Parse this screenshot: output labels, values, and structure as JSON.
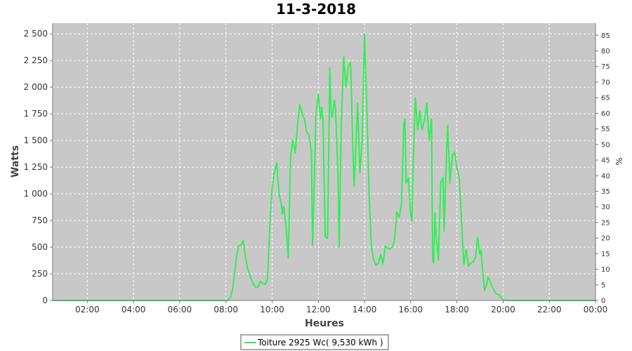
{
  "chart_data": {
    "type": "line",
    "title": "11-3-2018",
    "xlabel": "Heures",
    "ylabel": "Watts",
    "y2label": "%",
    "xlim": [
      0.5,
      24.0
    ],
    "ylim": [
      0,
      2600
    ],
    "y2lim": [
      0,
      88.89
    ],
    "x_ticks": [
      {
        "v": 2,
        "label": "02:00"
      },
      {
        "v": 4,
        "label": "04:00"
      },
      {
        "v": 6,
        "label": "06:00"
      },
      {
        "v": 8,
        "label": "08:00"
      },
      {
        "v": 10,
        "label": "10:00"
      },
      {
        "v": 12,
        "label": "12:00"
      },
      {
        "v": 14,
        "label": "14:00"
      },
      {
        "v": 16,
        "label": "16:00"
      },
      {
        "v": 18,
        "label": "18:00"
      },
      {
        "v": 20,
        "label": "20:00"
      },
      {
        "v": 22,
        "label": "22:00"
      },
      {
        "v": 24,
        "label": "00:00"
      }
    ],
    "y_ticks": [
      {
        "v": 0,
        "label": "0"
      },
      {
        "v": 250,
        "label": "250"
      },
      {
        "v": 500,
        "label": "500"
      },
      {
        "v": 750,
        "label": "750"
      },
      {
        "v": 1000,
        "label": "1 000"
      },
      {
        "v": 1250,
        "label": "1 250"
      },
      {
        "v": 1500,
        "label": "1 500"
      },
      {
        "v": 1750,
        "label": "1 750"
      },
      {
        "v": 2000,
        "label": "2 000"
      },
      {
        "v": 2250,
        "label": "2 250"
      },
      {
        "v": 2500,
        "label": "2 500"
      }
    ],
    "y2_ticks": [
      {
        "v": 0,
        "label": "0"
      },
      {
        "v": 5,
        "label": "5"
      },
      {
        "v": 10,
        "label": "10"
      },
      {
        "v": 15,
        "label": "15"
      },
      {
        "v": 20,
        "label": "20"
      },
      {
        "v": 25,
        "label": "25"
      },
      {
        "v": 30,
        "label": "30"
      },
      {
        "v": 35,
        "label": "35"
      },
      {
        "v": 40,
        "label": "40"
      },
      {
        "v": 45,
        "label": "45"
      },
      {
        "v": 50,
        "label": "50"
      },
      {
        "v": 55,
        "label": "55"
      },
      {
        "v": 60,
        "label": "60"
      },
      {
        "v": 65,
        "label": "65"
      },
      {
        "v": 70,
        "label": "70"
      },
      {
        "v": 75,
        "label": "75"
      },
      {
        "v": 80,
        "label": "80"
      },
      {
        "v": 85,
        "label": "85"
      }
    ],
    "grid": true,
    "plot_background": "#c8c8c8",
    "legend_position": "bottom-center",
    "series": [
      {
        "name": "Toiture 2925 Wc( 9,530 kWh )",
        "color": "#33ee55",
        "points": [
          [
            0.5,
            0
          ],
          [
            8.1,
            0
          ],
          [
            8.2,
            30
          ],
          [
            8.3,
            120
          ],
          [
            8.45,
            400
          ],
          [
            8.55,
            510
          ],
          [
            8.65,
            520
          ],
          [
            8.75,
            560
          ],
          [
            8.85,
            400
          ],
          [
            8.95,
            290
          ],
          [
            9.05,
            230
          ],
          [
            9.2,
            150
          ],
          [
            9.3,
            120
          ],
          [
            9.4,
            130
          ],
          [
            9.5,
            180
          ],
          [
            9.6,
            160
          ],
          [
            9.7,
            150
          ],
          [
            9.8,
            200
          ],
          [
            9.9,
            700
          ],
          [
            10.0,
            1050
          ],
          [
            10.1,
            1200
          ],
          [
            10.2,
            1290
          ],
          [
            10.3,
            1000
          ],
          [
            10.4,
            900
          ],
          [
            10.45,
            810
          ],
          [
            10.5,
            880
          ],
          [
            10.6,
            700
          ],
          [
            10.7,
            400
          ],
          [
            10.8,
            1350
          ],
          [
            10.9,
            1500
          ],
          [
            11.0,
            1380
          ],
          [
            11.1,
            1650
          ],
          [
            11.2,
            1840
          ],
          [
            11.3,
            1750
          ],
          [
            11.4,
            1700
          ],
          [
            11.5,
            1580
          ],
          [
            11.6,
            1550
          ],
          [
            11.7,
            1400
          ],
          [
            11.75,
            520
          ],
          [
            11.8,
            900
          ],
          [
            11.9,
            1750
          ],
          [
            12.0,
            1930
          ],
          [
            12.1,
            1700
          ],
          [
            12.15,
            1810
          ],
          [
            12.2,
            1700
          ],
          [
            12.3,
            600
          ],
          [
            12.4,
            580
          ],
          [
            12.5,
            2180
          ],
          [
            12.55,
            1780
          ],
          [
            12.6,
            1720
          ],
          [
            12.7,
            1880
          ],
          [
            12.75,
            1780
          ],
          [
            12.85,
            1200
          ],
          [
            12.9,
            500
          ],
          [
            13.0,
            1700
          ],
          [
            13.1,
            2290
          ],
          [
            13.2,
            2000
          ],
          [
            13.3,
            2200
          ],
          [
            13.4,
            2230
          ],
          [
            13.5,
            1400
          ],
          [
            13.55,
            1070
          ],
          [
            13.6,
            1300
          ],
          [
            13.7,
            1850
          ],
          [
            13.8,
            1200
          ],
          [
            13.9,
            1500
          ],
          [
            14.0,
            2500
          ],
          [
            14.1,
            1800
          ],
          [
            14.2,
            1000
          ],
          [
            14.3,
            500
          ],
          [
            14.4,
            380
          ],
          [
            14.5,
            330
          ],
          [
            14.6,
            350
          ],
          [
            14.7,
            430
          ],
          [
            14.8,
            340
          ],
          [
            14.9,
            510
          ],
          [
            15.0,
            490
          ],
          [
            15.1,
            480
          ],
          [
            15.2,
            500
          ],
          [
            15.3,
            560
          ],
          [
            15.4,
            830
          ],
          [
            15.5,
            780
          ],
          [
            15.6,
            900
          ],
          [
            15.7,
            1650
          ],
          [
            15.75,
            1700
          ],
          [
            15.8,
            1100
          ],
          [
            15.9,
            1150
          ],
          [
            16.0,
            800
          ],
          [
            16.05,
            740
          ],
          [
            16.1,
            1200
          ],
          [
            16.2,
            1900
          ],
          [
            16.3,
            1600
          ],
          [
            16.4,
            1780
          ],
          [
            16.45,
            1650
          ],
          [
            16.5,
            1600
          ],
          [
            16.6,
            1700
          ],
          [
            16.7,
            1850
          ],
          [
            16.8,
            1500
          ],
          [
            16.9,
            1700
          ],
          [
            16.95,
            380
          ],
          [
            17.0,
            350
          ],
          [
            17.05,
            820
          ],
          [
            17.1,
            620
          ],
          [
            17.2,
            380
          ],
          [
            17.3,
            1100
          ],
          [
            17.4,
            1150
          ],
          [
            17.45,
            650
          ],
          [
            17.5,
            1050
          ],
          [
            17.6,
            1640
          ],
          [
            17.7,
            1100
          ],
          [
            17.8,
            1360
          ],
          [
            17.9,
            1390
          ],
          [
            18.0,
            1250
          ],
          [
            18.1,
            1150
          ],
          [
            18.2,
            750
          ],
          [
            18.3,
            340
          ],
          [
            18.4,
            480
          ],
          [
            18.5,
            320
          ],
          [
            18.6,
            350
          ],
          [
            18.7,
            360
          ],
          [
            18.8,
            400
          ],
          [
            18.9,
            590
          ],
          [
            19.0,
            430
          ],
          [
            19.05,
            470
          ],
          [
            19.1,
            310
          ],
          [
            19.2,
            90
          ],
          [
            19.3,
            160
          ],
          [
            19.35,
            220
          ],
          [
            19.4,
            200
          ],
          [
            19.5,
            140
          ],
          [
            19.6,
            100
          ],
          [
            19.7,
            60
          ],
          [
            19.8,
            60
          ],
          [
            19.9,
            30
          ],
          [
            20.0,
            10
          ],
          [
            20.1,
            0
          ],
          [
            24.0,
            0
          ]
        ]
      }
    ]
  }
}
